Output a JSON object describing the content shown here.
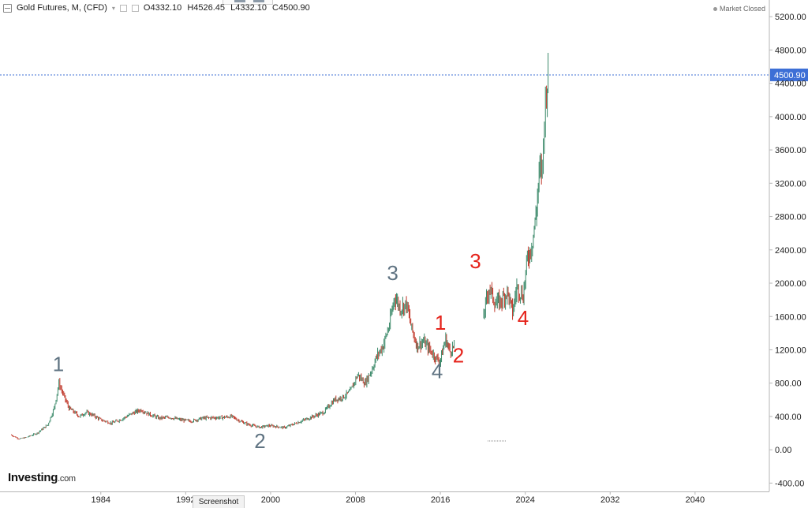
{
  "legend": {
    "symbol_title": "Gold Futures, M, (CFD)",
    "open": "O4332.10",
    "high": "H4526.45",
    "low": "L4332.10",
    "close": "C4500.90"
  },
  "status": "Market Closed",
  "logo": {
    "name": "Investing",
    "suffix": ".com"
  },
  "screenshot_label": "Screenshot",
  "colors": {
    "up": "#3c8a6a",
    "down": "#c0392b",
    "price_line": "#3d6fd6",
    "wave_gray": "#5f7382",
    "wave_red": "#e5231b"
  },
  "chart_data": {
    "type": "candlestick",
    "title": "Gold Futures, M, (CFD)",
    "xlabel": "",
    "ylabel": "",
    "xlim": [
      1974.5,
      2047
    ],
    "ylim": [
      -500,
      5400
    ],
    "x_tick_labels": [
      "1984",
      "1992",
      "2000",
      "2008",
      "2016",
      "2024",
      "2032",
      "2040"
    ],
    "y_tick_labels": [
      "5200.00",
      "4800.00",
      "4400.00",
      "4000.00",
      "3600.00",
      "3200.00",
      "2800.00",
      "2400.00",
      "2000.00",
      "1600.00",
      "1200.00",
      "800.00",
      "400.00",
      "0.00",
      "-400.00"
    ],
    "last_price": 4500.9,
    "last_price_label": "4500.90",
    "close_path": [
      [
        1975.5,
        180
      ],
      [
        1976.3,
        130
      ],
      [
        1977.0,
        150
      ],
      [
        1978.0,
        200
      ],
      [
        1979.0,
        300
      ],
      [
        1979.6,
        500
      ],
      [
        1980.05,
        800
      ],
      [
        1980.5,
        650
      ],
      [
        1981.0,
        500
      ],
      [
        1982.0,
        400
      ],
      [
        1982.6,
        450
      ],
      [
        1983.2,
        420
      ],
      [
        1984.0,
        360
      ],
      [
        1985.0,
        320
      ],
      [
        1986.0,
        370
      ],
      [
        1987.0,
        440
      ],
      [
        1987.8,
        480
      ],
      [
        1988.5,
        430
      ],
      [
        1989.5,
        380
      ],
      [
        1990.5,
        390
      ],
      [
        1991.5,
        360
      ],
      [
        1992.5,
        345
      ],
      [
        1993.6,
        380
      ],
      [
        1994.5,
        385
      ],
      [
        1995.5,
        388
      ],
      [
        1996.3,
        400
      ],
      [
        1997.2,
        340
      ],
      [
        1998.0,
        300
      ],
      [
        1999.0,
        270
      ],
      [
        1999.8,
        290
      ],
      [
        2000.5,
        280
      ],
      [
        2001.3,
        265
      ],
      [
        2002.2,
        310
      ],
      [
        2003.0,
        350
      ],
      [
        2004.0,
        400
      ],
      [
        2005.0,
        450
      ],
      [
        2006.0,
        600
      ],
      [
        2006.8,
        630
      ],
      [
        2007.5,
        700
      ],
      [
        2008.2,
        900
      ],
      [
        2008.9,
        800
      ],
      [
        2009.5,
        950
      ],
      [
        2010.0,
        1120
      ],
      [
        2010.6,
        1250
      ],
      [
        2011.2,
        1500
      ],
      [
        2011.7,
        1850
      ],
      [
        2012.2,
        1700
      ],
      [
        2012.8,
        1750
      ],
      [
        2013.3,
        1450
      ],
      [
        2013.8,
        1250
      ],
      [
        2014.4,
        1300
      ],
      [
        2015.0,
        1200
      ],
      [
        2015.6,
        1100
      ],
      [
        2015.95,
        1060
      ],
      [
        2016.5,
        1330
      ],
      [
        2016.9,
        1180
      ],
      [
        2017.3,
        1250
      ],
      [
        2020.0,
        1580
      ],
      [
        2020.6,
        1950
      ],
      [
        2021.2,
        1750
      ],
      [
        2021.8,
        1800
      ],
      [
        2022.3,
        1900
      ],
      [
        2022.8,
        1650
      ],
      [
        2023.2,
        1950
      ],
      [
        2023.8,
        1850
      ],
      [
        2024.2,
        2300
      ],
      [
        2024.6,
        2450
      ],
      [
        2025.0,
        2800
      ],
      [
        2025.3,
        3300
      ],
      [
        2025.6,
        3400
      ],
      [
        2025.8,
        4000
      ],
      [
        2026.0,
        4350
      ],
      [
        2026.15,
        4500.9
      ]
    ],
    "wave_labels": [
      {
        "text": "1",
        "x": 1980.0,
        "y": 945,
        "group": "gray"
      },
      {
        "text": "2",
        "x": 1999.0,
        "y": 20,
        "group": "gray"
      },
      {
        "text": "3",
        "x": 2011.5,
        "y": 2040,
        "group": "gray"
      },
      {
        "text": "4",
        "x": 2015.7,
        "y": 860,
        "group": "gray"
      },
      {
        "text": "1",
        "x": 2016.0,
        "y": 1440,
        "group": "red"
      },
      {
        "text": "2",
        "x": 2017.7,
        "y": 1050,
        "group": "red"
      },
      {
        "text": "3",
        "x": 2019.3,
        "y": 2180,
        "group": "red"
      },
      {
        "text": "4",
        "x": 2023.8,
        "y": 1500,
        "group": "red"
      }
    ],
    "grid": false
  }
}
